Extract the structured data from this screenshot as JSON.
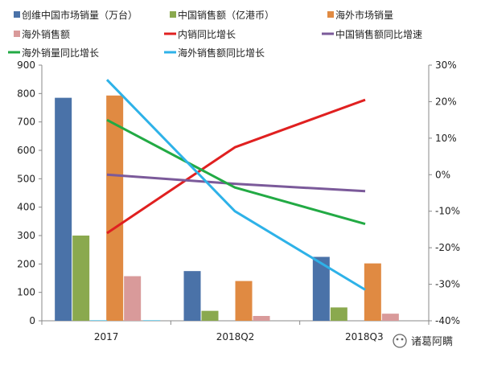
{
  "chart_data": {
    "type": "bar",
    "categories": [
      "2017",
      "2018Q2",
      "2018Q3"
    ],
    "y_left": {
      "min": 0,
      "max": 900,
      "step": 100
    },
    "y_right": {
      "min": -40,
      "max": 30,
      "step": 10,
      "unit": "%"
    },
    "bar_series": [
      {
        "name": "创维中国市场销量（万台）",
        "color": "#4a72a8",
        "values": [
          785,
          175,
          225
        ]
      },
      {
        "name": "中国销售额（亿港币）",
        "color": "#8aa94e",
        "values": [
          300,
          35,
          47
        ]
      },
      {
        "name": "海外市场销量",
        "color": "#e08a42",
        "values": [
          793,
          140,
          202
        ]
      },
      {
        "name": "海外销售额",
        "color": "#d99a9a",
        "values": [
          157,
          17,
          25
        ]
      }
    ],
    "extra_bars": [
      {
        "category": "2017",
        "color": "#4dc3e6",
        "values": [
          2,
          2
        ]
      }
    ],
    "line_series": [
      {
        "name": "内销同比增长",
        "color": "#e02020",
        "values": [
          -16,
          7.5,
          20.5
        ]
      },
      {
        "name": "中国销售额同比增速",
        "color": "#7b5a9a",
        "values": [
          0,
          -2.5,
          -4.5
        ]
      },
      {
        "name": "海外销量同比增长",
        "color": "#22aa44",
        "values": [
          15,
          -3.5,
          -13.5
        ]
      },
      {
        "name": "海外销售额同比增长",
        "color": "#2eb2e8",
        "values": [
          26,
          -10,
          -31.5
        ]
      }
    ]
  },
  "watermark": {
    "text": "诸葛阿瞒"
  }
}
